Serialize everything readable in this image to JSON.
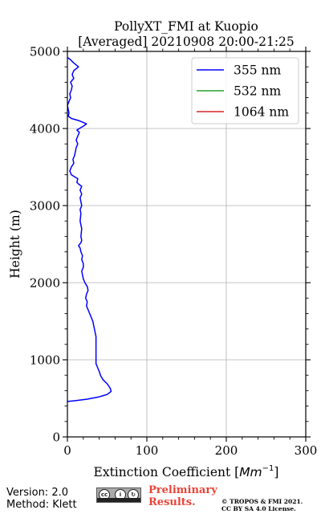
{
  "chart_data": {
    "type": "line",
    "title": [
      "PollyXT_FMI at Kuopio",
      "[Averaged] 20210908 20:00-21:25"
    ],
    "xlabel": "Extinction Coefficient [",
    "xlabel_unit": "Mm",
    "xlabel_exp": "−1",
    "xlabel_end": "]",
    "ylabel": "Height (m)",
    "xlim": [
      0,
      300
    ],
    "ylim": [
      0,
      5000
    ],
    "xticks": [
      0,
      100,
      200,
      300
    ],
    "yticks": [
      0,
      1000,
      2000,
      3000,
      4000,
      5000
    ],
    "grid": true,
    "legend_position": "top-right",
    "series": [
      {
        "name": "355 nm",
        "color": "#0000ff",
        "points": [
          [
            0,
            460
          ],
          [
            10,
            470
          ],
          [
            25,
            490
          ],
          [
            40,
            520
          ],
          [
            50,
            550
          ],
          [
            55,
            590
          ],
          [
            54,
            630
          ],
          [
            50,
            690
          ],
          [
            45,
            740
          ],
          [
            42,
            790
          ],
          [
            40,
            850
          ],
          [
            38,
            900
          ],
          [
            36,
            950
          ],
          [
            36,
            1000
          ],
          [
            36,
            1100
          ],
          [
            36,
            1200
          ],
          [
            36,
            1300
          ],
          [
            35,
            1350
          ],
          [
            34,
            1400
          ],
          [
            33,
            1450
          ],
          [
            32,
            1500
          ],
          [
            30,
            1550
          ],
          [
            28,
            1600
          ],
          [
            26,
            1650
          ],
          [
            24,
            1700
          ],
          [
            25,
            1750
          ],
          [
            23,
            1800
          ],
          [
            24,
            1850
          ],
          [
            26,
            1900
          ],
          [
            25,
            1950
          ],
          [
            22,
            2000
          ],
          [
            20,
            2050
          ],
          [
            19,
            2100
          ],
          [
            18,
            2150
          ],
          [
            20,
            2200
          ],
          [
            20,
            2250
          ],
          [
            18,
            2300
          ],
          [
            19,
            2350
          ],
          [
            17,
            2400
          ],
          [
            16,
            2450
          ],
          [
            14,
            2480
          ],
          [
            17,
            2520
          ],
          [
            18,
            2550
          ],
          [
            17,
            2600
          ],
          [
            18,
            2700
          ],
          [
            16,
            2800
          ],
          [
            17,
            2900
          ],
          [
            16,
            2950
          ],
          [
            18,
            3000
          ],
          [
            17,
            3050
          ],
          [
            16,
            3100
          ],
          [
            18,
            3150
          ],
          [
            16,
            3200
          ],
          [
            18,
            3250
          ],
          [
            14,
            3280
          ],
          [
            12,
            3300
          ],
          [
            13,
            3350
          ],
          [
            8,
            3380
          ],
          [
            5,
            3400
          ],
          [
            3,
            3450
          ],
          [
            5,
            3500
          ],
          [
            8,
            3550
          ],
          [
            7,
            3600
          ],
          [
            9,
            3650
          ],
          [
            10,
            3700
          ],
          [
            11,
            3750
          ],
          [
            13,
            3800
          ],
          [
            11,
            3850
          ],
          [
            13,
            3900
          ],
          [
            15,
            3950
          ],
          [
            12,
            3980
          ],
          [
            15,
            4000
          ],
          [
            20,
            4030
          ],
          [
            24,
            4060
          ],
          [
            15,
            4100
          ],
          [
            5,
            4130
          ],
          [
            1,
            4160
          ],
          [
            2,
            4200
          ],
          [
            1,
            4250
          ],
          [
            0,
            4300
          ],
          [
            2,
            4350
          ],
          [
            4,
            4400
          ],
          [
            3,
            4450
          ],
          [
            5,
            4500
          ],
          [
            6,
            4550
          ],
          [
            4,
            4600
          ],
          [
            8,
            4650
          ],
          [
            6,
            4700
          ],
          [
            8,
            4750
          ],
          [
            14,
            4800
          ],
          [
            8,
            4850
          ],
          [
            3,
            4900
          ],
          [
            0,
            4920
          ]
        ]
      },
      {
        "name": "532 nm",
        "color": "#2ca02c",
        "points": []
      },
      {
        "name": "1064 nm",
        "color": "#d62728",
        "points": []
      }
    ]
  },
  "footer": {
    "version": "Version: 2.0",
    "method": "Method: Klett",
    "license_badge": "cc BY SA",
    "preliminary_line1": "Preliminary",
    "preliminary_line2": "Results.",
    "copyright_line1": "© TROPOS & FMI 2021.",
    "copyright_line2": "CC BY SA 4.0 License."
  }
}
